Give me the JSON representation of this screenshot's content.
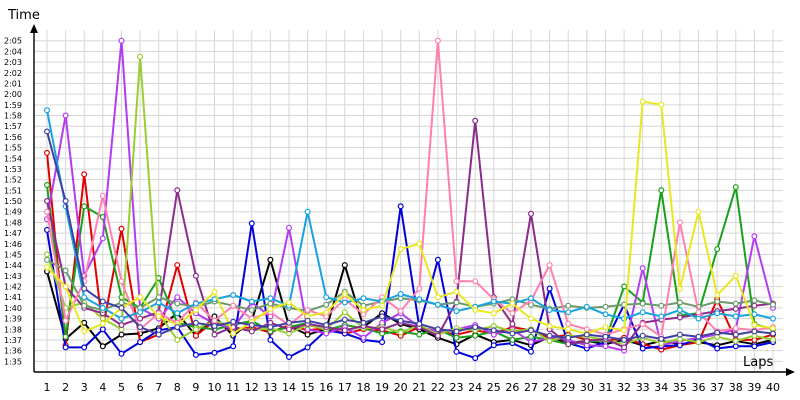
{
  "chart_data": {
    "type": "line",
    "title": "",
    "ylabel": "Time",
    "xlabel": "Laps",
    "grid": true,
    "x": [
      1,
      2,
      3,
      4,
      5,
      6,
      7,
      8,
      9,
      10,
      11,
      12,
      13,
      14,
      15,
      16,
      17,
      18,
      19,
      20,
      21,
      22,
      23,
      24,
      25,
      26,
      27,
      28,
      29,
      30,
      31,
      32,
      33,
      34,
      35,
      36,
      37,
      38,
      39,
      40
    ],
    "ylim": [
      "1:34",
      "2:06"
    ],
    "y_ticks": [
      "1:35",
      "1:36",
      "1:37",
      "1:38",
      "1:39",
      "1:40",
      "1:41",
      "1:42",
      "1:43",
      "1:44",
      "1:45",
      "1:46",
      "1:47",
      "1:48",
      "1:49",
      "1:50",
      "1:51",
      "1:52",
      "1:53",
      "1:54",
      "1:55",
      "1:56",
      "1:57",
      "1:58",
      "1:59",
      "2:00",
      "2:01",
      "2:02",
      "2:03",
      "2:04",
      "2:05"
    ],
    "series": [
      {
        "color": "#000000",
        "values": [
          "1:43.4",
          "1:37.1",
          "1:38.6",
          "1:36.4",
          "1:37.5",
          "1:37.6",
          "1:38.1",
          "1:39.5",
          "1:37.4",
          "1:39.2",
          "1:37.4",
          "1:38.8",
          "1:44.5",
          "1:38.3",
          "1:37.5",
          "1:38.0",
          "1:44.0",
          "1:38.2",
          "1:39.5",
          "1:38.5",
          "1:38.0",
          "1:37.2",
          "1:36.6",
          "1:37.5",
          "1:36.8",
          "1:37.0",
          "1:36.5",
          "1:37.3",
          "1:36.7",
          "1:36.9",
          "1:36.6",
          "1:37.0",
          "1:36.5",
          "1:36.9",
          "1:36.6",
          "1:36.8",
          "1:36.5",
          "1:36.9",
          "1:36.6",
          "1:37.0"
        ]
      },
      {
        "color": "#e00000",
        "values": [
          "1:54.5",
          "1:36.5",
          "1:52.5",
          "1:38.0",
          "1:47.4",
          "1:36.8",
          "1:37.5",
          "1:44.0",
          "1:37.4",
          "1:38.8",
          "1:37.9",
          "1:38.2",
          "1:37.7",
          "1:38.4",
          "1:37.9",
          "1:38.1",
          "1:37.6",
          "1:38.0",
          "1:37.9",
          "1:37.4",
          "1:38.2",
          "1:37.8",
          "1:37.5",
          "1:37.9",
          "1:37.6",
          "1:38.2",
          "1:37.9",
          "1:37.2",
          "1:37.5",
          "1:37.0",
          "1:36.9",
          "1:37.2",
          "1:36.6",
          "1:36.1",
          "1:36.5",
          "1:36.8",
          "1:40.8",
          "1:37.0",
          "1:37.0",
          "1:37.5"
        ]
      },
      {
        "color": "#0000dd",
        "values": [
          "1:47.3",
          "1:36.3",
          "1:36.3",
          "1:38.0",
          "1:35.7",
          "1:36.8",
          "1:37.9",
          "1:38.2",
          "1:35.6",
          "1:35.8",
          "1:36.4",
          "1:47.9",
          "1:37.0",
          "1:35.4",
          "1:36.3",
          "1:37.9",
          "1:37.6",
          "1:37.0",
          "1:36.8",
          "1:49.5",
          "1:38.2",
          "1:44.5",
          "1:35.9",
          "1:35.3",
          "1:36.5",
          "1:36.7",
          "1:35.9",
          "1:41.8",
          "1:36.7",
          "1:36.2",
          "1:36.8",
          "1:40.3",
          "1:36.2",
          "1:36.4",
          "1:36.5",
          "1:37.1",
          "1:36.2",
          "1:36.4",
          "1:36.4",
          "1:36.8"
        ]
      },
      {
        "color": "#1aa01a",
        "values": [
          "1:51.5",
          "1:37.3",
          "1:49.5",
          "1:48.5",
          "1:41.0",
          "1:40.0",
          "1:42.8",
          "1:38.6",
          "1:38.2",
          "1:38.0",
          "1:38.4",
          "1:38.8",
          "1:37.8",
          "1:38.2",
          "1:38.6",
          "1:37.9",
          "1:38.4",
          "1:38.1",
          "1:37.6",
          "1:37.8",
          "1:37.5",
          "1:38.0",
          "1:37.2",
          "1:37.4",
          "1:37.8",
          "1:37.0",
          "1:37.3",
          "1:37.0",
          "1:36.6",
          "1:36.8",
          "1:37.0",
          "1:42.0",
          "1:40.5",
          "1:51.0",
          "1:39.3",
          "1:39.5",
          "1:45.5",
          "1:51.3",
          "1:38.5",
          "1:38.0"
        ]
      },
      {
        "color": "#b43cf0",
        "values": [
          "1:48.3",
          "1:58.0",
          "1:43.0",
          "1:46.5",
          "2:05.0",
          "1:40.0",
          "1:39.0",
          "1:41.0",
          "1:39.5",
          "1:38.5",
          "1:38.1",
          "1:40.5",
          "1:39.2",
          "1:47.5",
          "1:38.0",
          "1:37.6",
          "1:38.2",
          "1:37.2",
          "1:38.6",
          "1:39.5",
          "1:38.2",
          "1:37.8",
          "1:38.0",
          "1:38.4",
          "1:37.5",
          "1:38.0",
          "1:36.8",
          "1:37.2",
          "1:37.0",
          "1:36.5",
          "1:36.4",
          "1:36.0",
          "1:43.7",
          "1:36.5",
          "1:36.9",
          "1:37.2",
          "1:37.5",
          "1:38.0",
          "1:46.7",
          "1:40.0"
        ]
      },
      {
        "color": "#9acd32",
        "values": [
          "1:45.0",
          "1:40.0",
          "1:40.5",
          "1:39.0",
          "1:38.0",
          "2:03.5",
          "1:39.5",
          "1:37.0",
          "1:38.0",
          "1:38.8",
          "1:38.2",
          "1:37.9",
          "1:38.1",
          "1:37.6",
          "1:38.4",
          "1:38.0",
          "1:39.6",
          "1:38.1",
          "1:38.2",
          "1:37.7",
          "1:38.4",
          "1:37.5",
          "1:38.1",
          "1:37.9",
          "1:38.3",
          "1:37.8",
          "1:38.0",
          "1:36.9",
          "1:37.4",
          "1:37.3",
          "1:37.0",
          "1:36.6",
          "1:37.2",
          "1:36.7",
          "1:37.1",
          "1:36.8",
          "1:37.3",
          "1:36.9",
          "1:37.4",
          "1:37.0"
        ]
      },
      {
        "color": "#8b2b8b",
        "values": [
          "1:50.0",
          "1:42.0",
          "1:40.0",
          "1:39.5",
          "1:38.4",
          "1:39.0",
          "1:39.6",
          "1:51.0",
          "1:43.0",
          "1:37.5",
          "1:38.2",
          "1:37.8",
          "1:38.6",
          "1:38.0",
          "1:38.5",
          "1:38.2",
          "1:37.9",
          "1:38.3",
          "1:38.0",
          "1:38.6",
          "1:38.2",
          "1:37.4",
          "1:40.6",
          "1:57.5",
          "1:41.0",
          "1:38.5",
          "1:48.8",
          "1:38.0",
          "1:36.6",
          "1:36.9",
          "1:37.1",
          "1:36.3",
          "1:38.6",
          "1:38.9",
          "1:39.1",
          "1:39.4",
          "1:39.7",
          "1:39.9",
          "1:40.2",
          "1:40.4"
        ]
      },
      {
        "color": "#6a9a6a",
        "values": [
          "1:44.5",
          "1:43.5",
          "1:40.2",
          "1:39.8",
          "1:40.5",
          "1:40.0",
          "1:41.0",
          "1:40.4",
          "1:40.1",
          "1:40.6",
          "1:40.2",
          "1:39.8",
          "1:40.4",
          "1:40.0",
          "1:39.7",
          "1:40.3",
          "1:41.5",
          "1:40.2",
          "1:40.6",
          "1:40.9",
          "1:40.7",
          "1:40.3",
          "1:40.5",
          "1:40.1",
          "1:40.4",
          "1:40.8",
          "1:40.3",
          "1:39.9",
          "1:40.2",
          "1:40.0",
          "1:40.1",
          "1:40.3",
          "1:40.4",
          "1:40.2",
          "1:40.5",
          "1:40.1",
          "1:40.6",
          "1:40.4",
          "1:40.7",
          "1:40.3"
        ]
      },
      {
        "color": "#ff80b0",
        "values": [
          "1:49.0",
          "1:38.8",
          "1:42.5",
          "1:50.5",
          "1:42.5",
          "1:38.0",
          "1:39.5",
          "1:38.6",
          "1:40.5",
          "1:38.8",
          "1:40.2",
          "1:39.0",
          "1:39.6",
          "1:38.4",
          "1:39.8",
          "1:39.2",
          "1:40.8",
          "1:39.4",
          "1:41.0",
          "1:39.7",
          "1:41.8",
          "2:05.0",
          "1:42.5",
          "1:42.5",
          "1:40.8",
          "1:39.5",
          "1:40.7",
          "1:44.0",
          "1:38.5",
          "1:38.0",
          "1:37.5",
          "1:38.0",
          "1:38.5",
          "1:37.3",
          "1:48.0",
          "1:39.6",
          "1:37.8",
          "1:38.1",
          "1:37.9",
          "1:38.2"
        ]
      },
      {
        "color": "#16a3e0",
        "values": [
          "1:58.5",
          "1:49.5",
          "1:41.0",
          "1:40.0",
          "1:39.0",
          "1:39.6",
          "1:40.5",
          "1:39.5",
          "1:40.4",
          "1:40.8",
          "1:41.2",
          "1:40.6",
          "1:40.9",
          "1:40.2",
          "1:49.0",
          "1:41.0",
          "1:40.5",
          "1:40.9",
          "1:40.6",
          "1:41.3",
          "1:40.8",
          "1:40.3",
          "1:39.7",
          "1:40.1",
          "1:40.6",
          "1:40.4",
          "1:40.9",
          "1:39.8",
          "1:39.6",
          "1:40.1",
          "1:39.4",
          "1:39.0",
          "1:39.6",
          "1:39.2",
          "1:39.8",
          "1:39.0",
          "1:39.5",
          "1:39.2",
          "1:39.4",
          "1:39.0"
        ]
      },
      {
        "color": "#e8e820",
        "values": [
          "1:43.8",
          "1:42.0",
          "1:37.8",
          "1:38.5",
          "1:40.0",
          "1:41.0",
          "1:39.2",
          "1:38.4",
          "1:39.8",
          "1:41.5",
          "1:37.6",
          "1:38.7",
          "1:39.9",
          "1:40.5",
          "1:39.2",
          "1:39.6",
          "1:41.3",
          "1:39.8",
          "1:40.2",
          "1:45.5",
          "1:46.0",
          "1:41.0",
          "1:41.5",
          "1:39.8",
          "1:39.5",
          "1:40.4",
          "1:39.0",
          "1:38.3",
          "1:38.0",
          "1:37.6",
          "1:38.2",
          "1:37.9",
          "1:59.3",
          "1:59.0",
          "1:41.8",
          "1:49.0",
          "1:41.2",
          "1:43.0",
          "1:38.4",
          "1:38.1"
        ]
      },
      {
        "color": "#4040a0",
        "values": [
          "1:56.5",
          "1:50.0",
          "1:41.8",
          "1:40.6",
          "1:40.0",
          "1:38.2",
          "1:37.5",
          "1:38.2",
          "1:38.6",
          "1:38.3",
          "1:38.7",
          "1:38.4",
          "1:38.2",
          "1:38.6",
          "1:38.8",
          "1:38.4",
          "1:38.9",
          "1:38.6",
          "1:39.2",
          "1:38.8",
          "1:38.5",
          "1:38.0",
          "1:37.8",
          "1:38.2",
          "1:37.9",
          "1:37.6",
          "1:37.9",
          "1:37.4",
          "1:37.2",
          "1:37.5",
          "1:37.3",
          "1:37.0",
          "1:37.4",
          "1:37.1",
          "1:37.5",
          "1:37.3",
          "1:37.7",
          "1:37.5",
          "1:37.8",
          "1:37.6"
        ]
      }
    ]
  }
}
